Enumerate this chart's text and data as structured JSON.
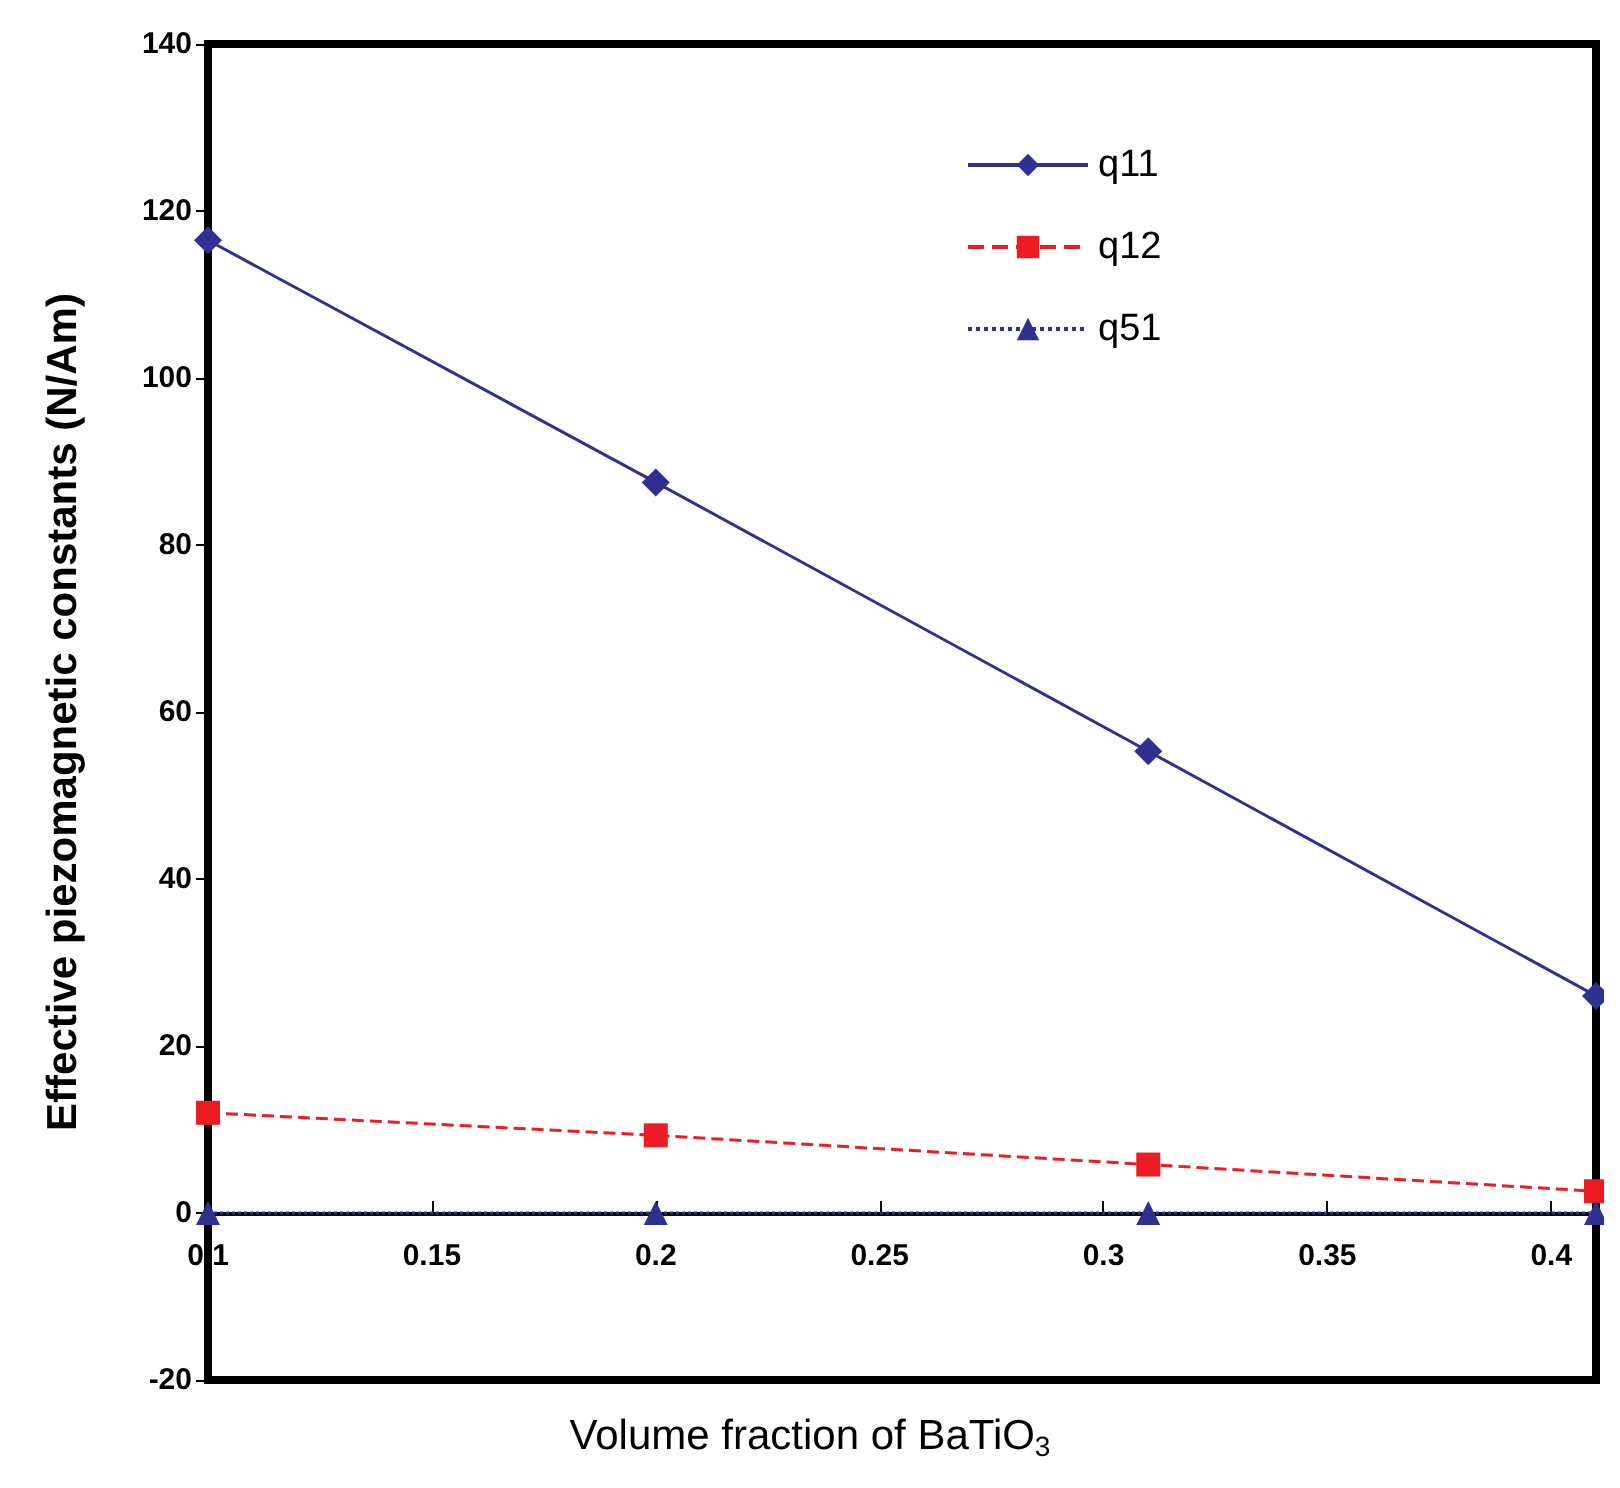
{
  "chart_data": {
    "type": "line",
    "xlabel": "Volume fraction of BaTiO$_{3}$",
    "ylabel": "Effective piezomagnetic constants (N/Am)",
    "x": [
      0.1,
      0.2,
      0.31,
      0.41
    ],
    "series": [
      {
        "name": "q11",
        "color": "#2e3192",
        "marker": "diamond",
        "line_style": "solid",
        "values": [
          116.5,
          87.5,
          55.3,
          26
        ]
      },
      {
        "name": "q12",
        "color": "#ed1c24",
        "marker": "square",
        "line_style": "dashed",
        "values": [
          12,
          9.3,
          5.8,
          2.6
        ]
      },
      {
        "name": "q51",
        "color": "#2e3192",
        "marker": "triangle",
        "line_style": "dotted",
        "values": [
          0,
          0,
          0,
          0
        ]
      }
    ],
    "xlim": [
      0.1,
      0.41
    ],
    "xticks": [
      0.1,
      0.15,
      0.2,
      0.25,
      0.3,
      0.35,
      0.4
    ],
    "ylim": [
      -20,
      140
    ],
    "yticks": [
      -20,
      0,
      20,
      40,
      60,
      80,
      100,
      120,
      140
    ],
    "grid": false,
    "legend": "top right"
  }
}
